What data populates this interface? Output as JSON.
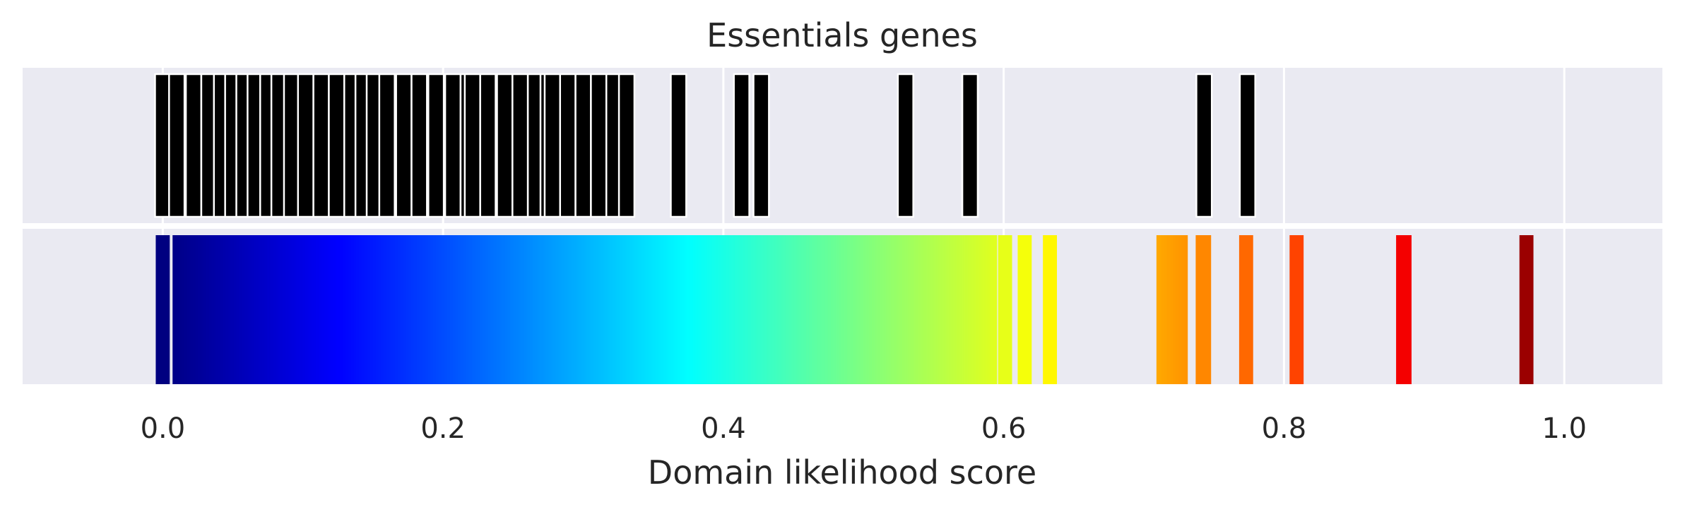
{
  "chart_data": {
    "type": "barcode",
    "title": "Essentials genes",
    "xlabel": "Domain likelihood score",
    "xlim": [
      -0.1,
      1.07
    ],
    "xticks": [
      0.0,
      0.2,
      0.4,
      0.6,
      0.8,
      1.0
    ],
    "xtick_labels": [
      "0.0",
      "0.2",
      "0.4",
      "0.6",
      "0.8",
      "1.0"
    ],
    "grid": true,
    "background_color": "#eaeaf2",
    "grid_color": "#ffffff",
    "colormap": "jet",
    "top_panel": {
      "bar_color": "#000000",
      "edge_color": "#ffffff",
      "bar_width": 0.011,
      "scores": [
        0.0,
        0.01,
        0.022,
        0.033,
        0.042,
        0.05,
        0.058,
        0.066,
        0.075,
        0.083,
        0.092,
        0.102,
        0.113,
        0.124,
        0.135,
        0.143,
        0.151,
        0.16,
        0.172,
        0.183,
        0.195,
        0.207,
        0.218,
        0.221,
        0.232,
        0.244,
        0.255,
        0.266,
        0.275,
        0.278,
        0.289,
        0.3,
        0.311,
        0.322,
        0.331,
        0.368,
        0.413,
        0.427,
        0.53,
        0.576,
        0.743,
        0.774
      ]
    },
    "bottom_panel": {
      "colored_by_score": true,
      "segments": [
        {
          "start": -0.005,
          "end": 0.005
        },
        {
          "start": 0.007,
          "end": 0.595
        },
        {
          "start": 0.596,
          "end": 0.606
        },
        {
          "start": 0.61,
          "end": 0.62
        },
        {
          "start": 0.628,
          "end": 0.638
        },
        {
          "start": 0.709,
          "end": 0.731
        },
        {
          "start": 0.737,
          "end": 0.748
        },
        {
          "start": 0.768,
          "end": 0.778
        },
        {
          "start": 0.804,
          "end": 0.814
        },
        {
          "start": 0.88,
          "end": 0.891
        },
        {
          "start": 0.968,
          "end": 0.978
        }
      ]
    }
  }
}
